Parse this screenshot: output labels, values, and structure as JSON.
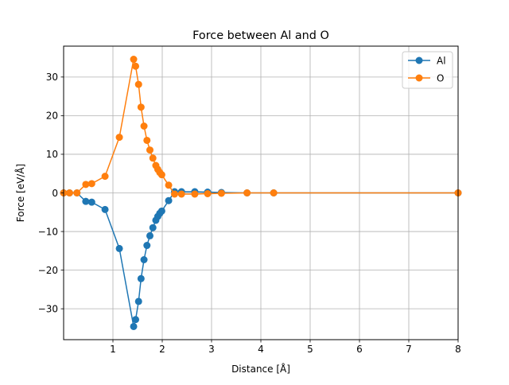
{
  "chart_data": {
    "type": "line",
    "title": "Force between Al and O",
    "xlabel": "Distance [Å]",
    "ylabel": "Force [eV/Å]",
    "xlim": [
      0,
      8
    ],
    "ylim": [
      -38,
      38
    ],
    "xticks": [
      1,
      2,
      3,
      4,
      5,
      6,
      7,
      8
    ],
    "yticks": [
      -30,
      -20,
      -10,
      0,
      10,
      20,
      30
    ],
    "xtick_labels": [
      "1",
      "2",
      "3",
      "4",
      "5",
      "6",
      "7",
      "8"
    ],
    "ytick_labels": [
      "−30",
      "−20",
      "−10",
      "0",
      "10",
      "20",
      "30"
    ],
    "grid": true,
    "legend_position": "top-right",
    "series": [
      {
        "name": "Al",
        "color": "#1f77b4",
        "marker": "circle",
        "x": [
          0.0,
          0.12,
          0.27,
          0.45,
          0.57,
          0.84,
          1.13,
          1.42,
          1.46,
          1.52,
          1.57,
          1.63,
          1.69,
          1.75,
          1.81,
          1.87,
          1.91,
          1.95,
          1.99,
          2.13,
          2.25,
          2.39,
          2.66,
          2.92,
          3.2,
          3.72,
          4.26,
          8.0
        ],
        "y": [
          0.0,
          0.0,
          0.0,
          -2.2,
          -2.4,
          -4.3,
          -14.4,
          -34.6,
          -32.8,
          -28.1,
          -22.2,
          -17.3,
          -13.6,
          -11.1,
          -9.0,
          -7.1,
          -6.1,
          -5.3,
          -4.7,
          -2.0,
          0.3,
          0.3,
          0.3,
          0.2,
          0.1,
          0.0,
          0.0,
          0.0
        ]
      },
      {
        "name": "O",
        "color": "#ff7f0e",
        "marker": "circle",
        "x": [
          0.0,
          0.12,
          0.27,
          0.45,
          0.57,
          0.84,
          1.13,
          1.42,
          1.46,
          1.52,
          1.57,
          1.63,
          1.69,
          1.75,
          1.81,
          1.87,
          1.91,
          1.95,
          1.99,
          2.13,
          2.25,
          2.39,
          2.66,
          2.92,
          3.2,
          3.72,
          4.26,
          8.0
        ],
        "y": [
          0.0,
          0.0,
          0.0,
          2.2,
          2.4,
          4.3,
          14.4,
          34.6,
          32.8,
          28.1,
          22.2,
          17.3,
          13.6,
          11.1,
          9.0,
          7.1,
          6.1,
          5.3,
          4.7,
          2.0,
          -0.3,
          -0.3,
          -0.3,
          -0.2,
          -0.1,
          0.0,
          0.0,
          0.0
        ]
      }
    ]
  }
}
